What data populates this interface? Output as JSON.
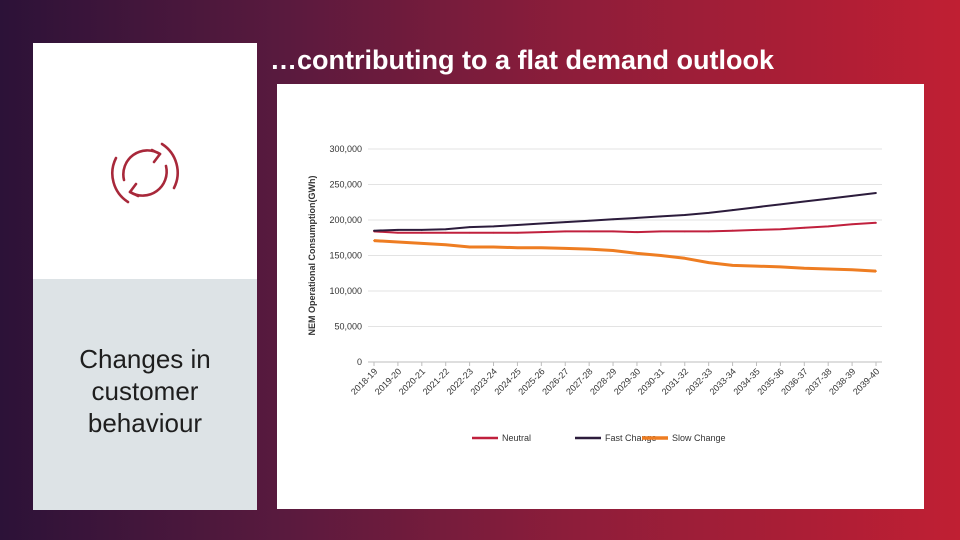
{
  "slide": {
    "title": "…contributing to a flat demand outlook",
    "left_caption": "Changes in customer behaviour",
    "icon": "refresh-icon"
  },
  "colors": {
    "accent": "#a8283a",
    "neutral": "#c0203d",
    "fast": "#2c1c3c",
    "slow": "#ee7d22"
  },
  "chart_data": {
    "type": "line",
    "title": "",
    "xlabel": "",
    "ylabel": "NEM Operational Consumption(GWh)",
    "ylim": [
      0,
      300000
    ],
    "yticks": [
      0,
      50000,
      100000,
      150000,
      200000,
      250000,
      300000
    ],
    "ytick_labels": [
      "0",
      "50,000",
      "100,000",
      "150,000",
      "200,000",
      "250,000",
      "300,000"
    ],
    "grid": true,
    "legend": "bottom",
    "categories": [
      "2018-19",
      "2019-20",
      "2020-21",
      "2021-22",
      "2022-23",
      "2023-24",
      "2024-25",
      "2025-26",
      "2026-27",
      "2027-28",
      "2028-29",
      "2029-30",
      "2030-31",
      "2031-32",
      "2032-33",
      "2033-34",
      "2034-35",
      "2035-36",
      "2036-37",
      "2037-38",
      "2038-39",
      "2039-40"
    ],
    "series": [
      {
        "name": "Neutral",
        "color": "#c0203d",
        "values": [
          184000,
          182000,
          182000,
          182000,
          182000,
          182000,
          182000,
          183000,
          184000,
          184000,
          184000,
          183000,
          184000,
          184000,
          184000,
          185000,
          186000,
          187000,
          189000,
          191000,
          194000,
          196000
        ]
      },
      {
        "name": "Fast Change",
        "color": "#2c1c3c",
        "values": [
          185000,
          186000,
          186000,
          187000,
          190000,
          191000,
          193000,
          195000,
          197000,
          199000,
          201000,
          203000,
          205000,
          207000,
          210000,
          214000,
          218000,
          222000,
          226000,
          230000,
          234000,
          238000
        ]
      },
      {
        "name": "Slow Change",
        "color": "#ee7d22",
        "values": [
          171000,
          169000,
          167000,
          165000,
          162000,
          162000,
          161000,
          161000,
          160000,
          159000,
          157000,
          153000,
          150000,
          146000,
          140000,
          136000,
          135000,
          134000,
          132000,
          131000,
          130000,
          128000
        ]
      }
    ]
  }
}
